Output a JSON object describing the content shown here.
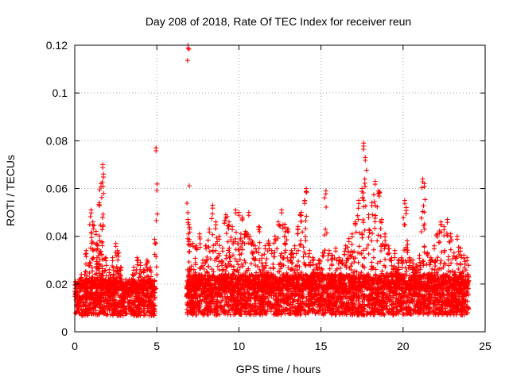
{
  "chart_data": {
    "type": "scatter",
    "title": "Day 208 of 2018, Rate Of TEC Index for receiver reun",
    "xlabel": "GPS time / hours",
    "ylabel": "ROTI / TECUs",
    "xlim": [
      0,
      25
    ],
    "ylim": [
      0,
      0.12
    ],
    "grid": true,
    "xticks": [
      0,
      5,
      10,
      15,
      20,
      25
    ],
    "yticks": [
      0,
      0.02,
      0.04,
      0.06,
      0.08,
      0.1,
      0.12
    ],
    "xtick_labels": [
      "0",
      "5",
      "10",
      "15",
      "20",
      "25"
    ],
    "ytick_labels": [
      "0",
      "0.02",
      "0.04",
      "0.06",
      "0.08",
      "0.1",
      "0.12"
    ],
    "marker": "+",
    "marker_color": "#ff0000",
    "series": [
      {
        "name": "ROTI",
        "bands": [
          {
            "x_start": 0.0,
            "x_end": 4.9,
            "y_low": 0.004,
            "y_high": 0.022
          },
          {
            "x_start": 6.8,
            "x_end": 24.0,
            "y_low": 0.004,
            "y_high": 0.024
          }
        ],
        "peaks": [
          {
            "x": 0.4,
            "y": 0.024
          },
          {
            "x": 0.7,
            "y": 0.034
          },
          {
            "x": 0.9,
            "y": 0.029
          },
          {
            "x": 1.0,
            "y": 0.051
          },
          {
            "x": 1.1,
            "y": 0.046
          },
          {
            "x": 1.3,
            "y": 0.042
          },
          {
            "x": 1.4,
            "y": 0.036
          },
          {
            "x": 1.5,
            "y": 0.054
          },
          {
            "x": 1.6,
            "y": 0.062
          },
          {
            "x": 1.7,
            "y": 0.07
          },
          {
            "x": 1.75,
            "y": 0.066
          },
          {
            "x": 1.9,
            "y": 0.031
          },
          {
            "x": 2.1,
            "y": 0.026
          },
          {
            "x": 2.3,
            "y": 0.031
          },
          {
            "x": 2.5,
            "y": 0.037
          },
          {
            "x": 2.6,
            "y": 0.034
          },
          {
            "x": 2.8,
            "y": 0.027
          },
          {
            "x": 3.0,
            "y": 0.019
          },
          {
            "x": 3.2,
            "y": 0.017
          },
          {
            "x": 3.4,
            "y": 0.018
          },
          {
            "x": 3.6,
            "y": 0.027
          },
          {
            "x": 3.8,
            "y": 0.031
          },
          {
            "x": 4.0,
            "y": 0.029
          },
          {
            "x": 4.2,
            "y": 0.026
          },
          {
            "x": 4.4,
            "y": 0.03
          },
          {
            "x": 4.6,
            "y": 0.027
          },
          {
            "x": 4.8,
            "y": 0.019
          },
          {
            "x": 4.95,
            "y": 0.077
          },
          {
            "x": 6.9,
            "y": 0.12
          },
          {
            "x": 6.9,
            "y": 0.047
          },
          {
            "x": 7.0,
            "y": 0.043
          },
          {
            "x": 7.2,
            "y": 0.037
          },
          {
            "x": 7.4,
            "y": 0.036
          },
          {
            "x": 7.6,
            "y": 0.041
          },
          {
            "x": 7.8,
            "y": 0.03
          },
          {
            "x": 8.0,
            "y": 0.036
          },
          {
            "x": 8.2,
            "y": 0.043
          },
          {
            "x": 8.4,
            "y": 0.053
          },
          {
            "x": 8.6,
            "y": 0.046
          },
          {
            "x": 8.8,
            "y": 0.04
          },
          {
            "x": 9.0,
            "y": 0.035
          },
          {
            "x": 9.2,
            "y": 0.049
          },
          {
            "x": 9.4,
            "y": 0.046
          },
          {
            "x": 9.6,
            "y": 0.044
          },
          {
            "x": 9.8,
            "y": 0.051
          },
          {
            "x": 10.0,
            "y": 0.05
          },
          {
            "x": 10.2,
            "y": 0.048
          },
          {
            "x": 10.4,
            "y": 0.042
          },
          {
            "x": 10.6,
            "y": 0.05
          },
          {
            "x": 10.8,
            "y": 0.038
          },
          {
            "x": 11.0,
            "y": 0.036
          },
          {
            "x": 11.2,
            "y": 0.044
          },
          {
            "x": 11.4,
            "y": 0.032
          },
          {
            "x": 11.6,
            "y": 0.036
          },
          {
            "x": 11.8,
            "y": 0.038
          },
          {
            "x": 12.0,
            "y": 0.034
          },
          {
            "x": 12.2,
            "y": 0.04
          },
          {
            "x": 12.4,
            "y": 0.046
          },
          {
            "x": 12.6,
            "y": 0.051
          },
          {
            "x": 12.8,
            "y": 0.045
          },
          {
            "x": 13.0,
            "y": 0.043
          },
          {
            "x": 13.2,
            "y": 0.034
          },
          {
            "x": 13.4,
            "y": 0.036
          },
          {
            "x": 13.6,
            "y": 0.044
          },
          {
            "x": 13.8,
            "y": 0.05
          },
          {
            "x": 14.0,
            "y": 0.055
          },
          {
            "x": 14.1,
            "y": 0.06
          },
          {
            "x": 14.3,
            "y": 0.034
          },
          {
            "x": 14.5,
            "y": 0.031
          },
          {
            "x": 14.7,
            "y": 0.028
          },
          {
            "x": 14.9,
            "y": 0.03
          },
          {
            "x": 15.1,
            "y": 0.033
          },
          {
            "x": 15.3,
            "y": 0.059
          },
          {
            "x": 15.5,
            "y": 0.034
          },
          {
            "x": 15.7,
            "y": 0.032
          },
          {
            "x": 15.9,
            "y": 0.035
          },
          {
            "x": 16.1,
            "y": 0.031
          },
          {
            "x": 16.3,
            "y": 0.03
          },
          {
            "x": 16.5,
            "y": 0.036
          },
          {
            "x": 16.7,
            "y": 0.039
          },
          {
            "x": 16.9,
            "y": 0.041
          },
          {
            "x": 17.1,
            "y": 0.046
          },
          {
            "x": 17.3,
            "y": 0.055
          },
          {
            "x": 17.5,
            "y": 0.06
          },
          {
            "x": 17.6,
            "y": 0.079
          },
          {
            "x": 17.7,
            "y": 0.073
          },
          {
            "x": 17.9,
            "y": 0.049
          },
          {
            "x": 18.1,
            "y": 0.054
          },
          {
            "x": 18.3,
            "y": 0.063
          },
          {
            "x": 18.5,
            "y": 0.059
          },
          {
            "x": 18.7,
            "y": 0.047
          },
          {
            "x": 18.9,
            "y": 0.041
          },
          {
            "x": 19.1,
            "y": 0.036
          },
          {
            "x": 19.3,
            "y": 0.031
          },
          {
            "x": 19.5,
            "y": 0.034
          },
          {
            "x": 19.7,
            "y": 0.03
          },
          {
            "x": 19.9,
            "y": 0.031
          },
          {
            "x": 20.1,
            "y": 0.055
          },
          {
            "x": 20.2,
            "y": 0.052
          },
          {
            "x": 20.4,
            "y": 0.031
          },
          {
            "x": 20.6,
            "y": 0.03
          },
          {
            "x": 20.8,
            "y": 0.028
          },
          {
            "x": 21.0,
            "y": 0.032
          },
          {
            "x": 21.2,
            "y": 0.064
          },
          {
            "x": 21.3,
            "y": 0.062
          },
          {
            "x": 21.5,
            "y": 0.033
          },
          {
            "x": 21.7,
            "y": 0.031
          },
          {
            "x": 21.9,
            "y": 0.036
          },
          {
            "x": 22.1,
            "y": 0.041
          },
          {
            "x": 22.3,
            "y": 0.046
          },
          {
            "x": 22.5,
            "y": 0.044
          },
          {
            "x": 22.7,
            "y": 0.047
          },
          {
            "x": 22.9,
            "y": 0.041
          },
          {
            "x": 23.1,
            "y": 0.033
          },
          {
            "x": 23.3,
            "y": 0.04
          },
          {
            "x": 23.5,
            "y": 0.035
          },
          {
            "x": 23.7,
            "y": 0.032
          },
          {
            "x": 23.9,
            "y": 0.031
          }
        ]
      }
    ]
  }
}
